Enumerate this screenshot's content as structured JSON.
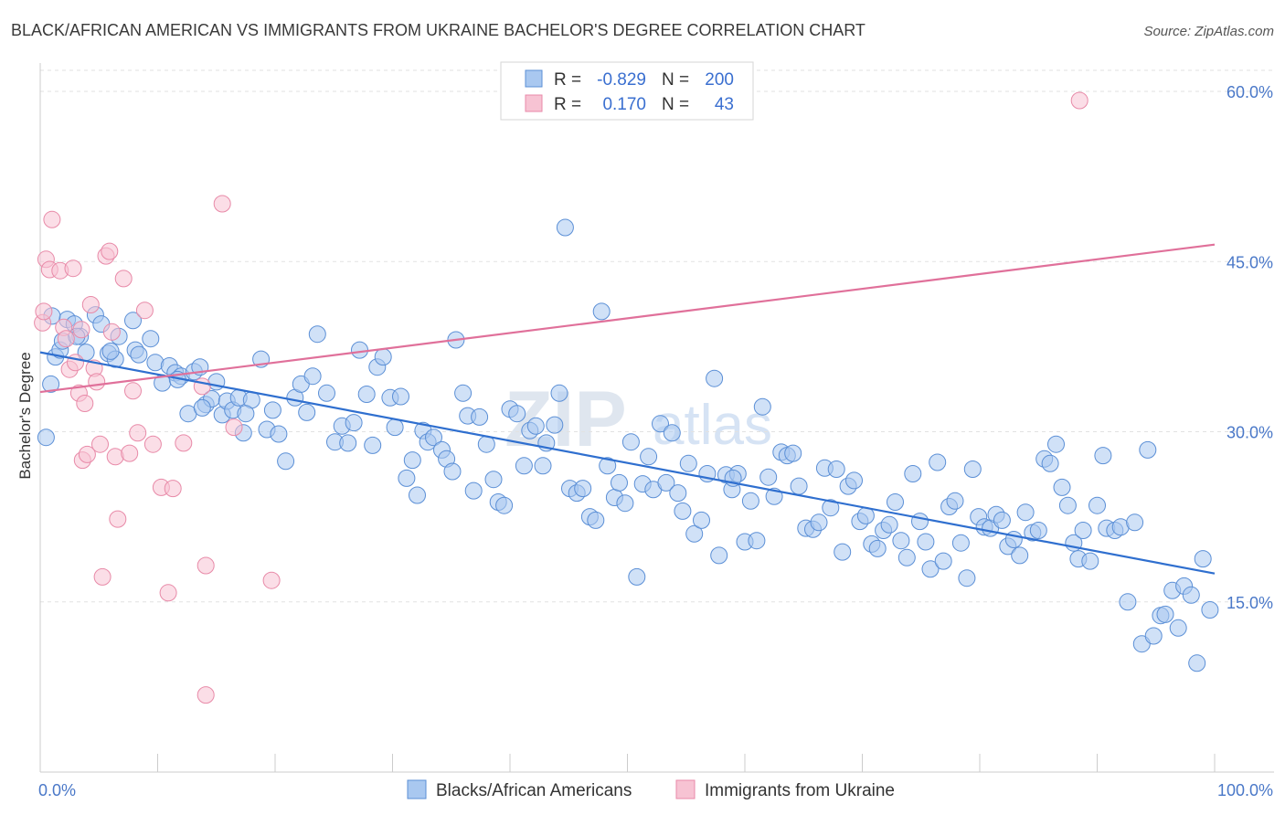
{
  "chart_data": {
    "type": "scatter",
    "title": "BLACK/AFRICAN AMERICAN VS IMMIGRANTS FROM UKRAINE BACHELOR'S DEGREE CORRELATION CHART",
    "source": "Source: ZipAtlas.com",
    "ylabel": "Bachelor's Degree",
    "xlabel": "",
    "xlim": [
      0,
      100
    ],
    "ylim": [
      0,
      62.5
    ],
    "x_ticks": [
      {
        "value": 0,
        "label": "0.0%"
      },
      {
        "value": 100,
        "label": "100.0%"
      }
    ],
    "y_ticks": [
      {
        "value": 15,
        "label": "15.0%"
      },
      {
        "value": 30,
        "label": "30.0%"
      },
      {
        "value": 45,
        "label": "45.0%"
      },
      {
        "value": 60,
        "label": "60.0%"
      }
    ],
    "watermark": {
      "part1": "ZIP",
      "part2": "atlas"
    },
    "stats": {
      "r_label": "R =",
      "n_label": "N =",
      "rows": [
        {
          "series": "Blacks/African Americans",
          "r": "-0.829",
          "n": "200"
        },
        {
          "series": "Immigrants from Ukraine",
          "r": "0.170",
          "n": "43"
        }
      ]
    },
    "series": [
      {
        "name": "Blacks/African Americans",
        "fill": "#a9c8f0",
        "stroke": "#5b8fd6",
        "line_color": "#2f6fcf",
        "trend": {
          "x0": 0,
          "y0": 37.0,
          "x1": 100,
          "y1": 17.5
        },
        "points": [
          [
            0.5,
            29.5
          ],
          [
            0.9,
            34.2
          ],
          [
            1.3,
            36.6
          ],
          [
            1.7,
            37.2
          ],
          [
            1.9,
            38.0
          ],
          [
            2.3,
            39.9
          ],
          [
            2.9,
            39.5
          ],
          [
            3.4,
            38.4
          ],
          [
            3.9,
            37.0
          ],
          [
            4.7,
            40.3
          ],
          [
            5.2,
            39.5
          ],
          [
            5.8,
            36.9
          ],
          [
            6.4,
            36.4
          ],
          [
            6.7,
            38.4
          ],
          [
            8.1,
            37.2
          ],
          [
            7.9,
            39.8
          ],
          [
            8.4,
            36.8
          ],
          [
            9.4,
            38.2
          ],
          [
            9.8,
            36.1
          ],
          [
            10.4,
            34.3
          ],
          [
            11.0,
            35.8
          ],
          [
            11.5,
            35.2
          ],
          [
            12.0,
            34.9
          ],
          [
            12.6,
            31.6
          ],
          [
            13.1,
            35.3
          ],
          [
            13.6,
            35.7
          ],
          [
            14.1,
            32.4
          ],
          [
            14.6,
            32.9
          ],
          [
            15.0,
            34.4
          ],
          [
            15.5,
            31.5
          ],
          [
            15.9,
            32.7
          ],
          [
            16.4,
            31.9
          ],
          [
            16.9,
            33.0
          ],
          [
            17.3,
            29.9
          ],
          [
            18.0,
            32.8
          ],
          [
            18.8,
            36.4
          ],
          [
            19.3,
            30.2
          ],
          [
            19.8,
            31.9
          ],
          [
            20.3,
            29.8
          ],
          [
            20.9,
            27.4
          ],
          [
            21.7,
            33.0
          ],
          [
            22.2,
            34.2
          ],
          [
            22.7,
            31.7
          ],
          [
            23.2,
            34.9
          ],
          [
            23.6,
            38.6
          ],
          [
            24.4,
            33.4
          ],
          [
            25.1,
            29.1
          ],
          [
            25.7,
            30.5
          ],
          [
            26.2,
            29.0
          ],
          [
            26.7,
            30.8
          ],
          [
            27.2,
            37.2
          ],
          [
            27.8,
            33.3
          ],
          [
            28.3,
            28.8
          ],
          [
            28.7,
            35.7
          ],
          [
            29.2,
            36.6
          ],
          [
            29.8,
            33.0
          ],
          [
            30.2,
            30.4
          ],
          [
            30.7,
            33.1
          ],
          [
            31.2,
            25.9
          ],
          [
            31.7,
            27.5
          ],
          [
            32.1,
            24.4
          ],
          [
            32.6,
            30.1
          ],
          [
            33.0,
            29.1
          ],
          [
            33.5,
            29.5
          ],
          [
            34.2,
            28.4
          ],
          [
            34.6,
            27.6
          ],
          [
            35.1,
            26.5
          ],
          [
            35.4,
            38.1
          ],
          [
            36.0,
            33.4
          ],
          [
            36.4,
            31.4
          ],
          [
            36.9,
            24.8
          ],
          [
            37.4,
            31.3
          ],
          [
            38.0,
            28.9
          ],
          [
            38.6,
            25.8
          ],
          [
            39.0,
            23.8
          ],
          [
            39.5,
            23.5
          ],
          [
            40.0,
            32.0
          ],
          [
            40.6,
            31.6
          ],
          [
            41.2,
            27.0
          ],
          [
            41.7,
            30.1
          ],
          [
            42.2,
            30.5
          ],
          [
            42.8,
            27.0
          ],
          [
            43.1,
            29.0
          ],
          [
            43.8,
            30.6
          ],
          [
            44.2,
            33.4
          ],
          [
            44.7,
            48.0
          ],
          [
            45.1,
            25.0
          ],
          [
            45.7,
            24.6
          ],
          [
            46.2,
            25.0
          ],
          [
            46.8,
            22.5
          ],
          [
            47.3,
            22.2
          ],
          [
            47.8,
            40.6
          ],
          [
            48.3,
            27.0
          ],
          [
            48.9,
            24.2
          ],
          [
            49.3,
            25.5
          ],
          [
            49.8,
            23.7
          ],
          [
            50.3,
            29.1
          ],
          [
            50.8,
            17.2
          ],
          [
            51.3,
            25.4
          ],
          [
            51.8,
            27.8
          ],
          [
            52.2,
            24.9
          ],
          [
            52.8,
            30.7
          ],
          [
            53.3,
            25.5
          ],
          [
            53.8,
            29.9
          ],
          [
            54.3,
            24.6
          ],
          [
            54.7,
            23.0
          ],
          [
            55.2,
            27.2
          ],
          [
            55.7,
            21.0
          ],
          [
            56.3,
            22.2
          ],
          [
            56.8,
            26.3
          ],
          [
            57.4,
            34.7
          ],
          [
            57.8,
            19.1
          ],
          [
            58.4,
            26.2
          ],
          [
            58.9,
            24.9
          ],
          [
            59.4,
            26.3
          ],
          [
            60.0,
            20.3
          ],
          [
            60.5,
            23.9
          ],
          [
            61.0,
            20.4
          ],
          [
            61.5,
            32.2
          ],
          [
            62.0,
            26.0
          ],
          [
            62.5,
            24.3
          ],
          [
            63.1,
            28.2
          ],
          [
            63.6,
            27.9
          ],
          [
            64.1,
            28.1
          ],
          [
            64.6,
            25.2
          ],
          [
            65.2,
            21.5
          ],
          [
            65.8,
            21.4
          ],
          [
            66.3,
            22.0
          ],
          [
            66.8,
            26.8
          ],
          [
            67.3,
            23.3
          ],
          [
            67.8,
            26.7
          ],
          [
            68.3,
            19.4
          ],
          [
            68.8,
            25.2
          ],
          [
            69.3,
            25.7
          ],
          [
            69.8,
            22.1
          ],
          [
            70.3,
            22.6
          ],
          [
            70.8,
            20.1
          ],
          [
            71.3,
            19.7
          ],
          [
            71.8,
            21.3
          ],
          [
            72.3,
            21.8
          ],
          [
            72.8,
            23.8
          ],
          [
            73.3,
            20.4
          ],
          [
            73.8,
            18.9
          ],
          [
            74.3,
            26.3
          ],
          [
            74.9,
            22.1
          ],
          [
            75.4,
            20.3
          ],
          [
            75.8,
            17.9
          ],
          [
            76.4,
            27.3
          ],
          [
            76.9,
            18.6
          ],
          [
            77.4,
            23.4
          ],
          [
            77.9,
            23.9
          ],
          [
            78.4,
            20.2
          ],
          [
            78.9,
            17.1
          ],
          [
            79.4,
            26.7
          ],
          [
            79.9,
            22.5
          ],
          [
            80.4,
            21.6
          ],
          [
            80.9,
            21.5
          ],
          [
            81.4,
            22.7
          ],
          [
            81.9,
            22.2
          ],
          [
            82.4,
            19.9
          ],
          [
            82.9,
            20.5
          ],
          [
            83.4,
            19.1
          ],
          [
            83.9,
            22.9
          ],
          [
            84.5,
            21.1
          ],
          [
            85.0,
            21.3
          ],
          [
            85.5,
            27.6
          ],
          [
            86.0,
            27.2
          ],
          [
            86.5,
            28.9
          ],
          [
            87.0,
            25.1
          ],
          [
            87.5,
            23.5
          ],
          [
            88.0,
            20.2
          ],
          [
            88.4,
            18.8
          ],
          [
            88.8,
            21.3
          ],
          [
            89.4,
            18.6
          ],
          [
            90.0,
            23.5
          ],
          [
            90.5,
            27.9
          ],
          [
            90.8,
            21.5
          ],
          [
            91.5,
            21.3
          ],
          [
            92.0,
            21.6
          ],
          [
            92.6,
            15.0
          ],
          [
            93.2,
            22.0
          ],
          [
            93.8,
            11.3
          ],
          [
            94.3,
            28.4
          ],
          [
            94.8,
            12.0
          ],
          [
            95.4,
            13.8
          ],
          [
            95.8,
            13.9
          ],
          [
            96.4,
            16.0
          ],
          [
            96.9,
            12.7
          ],
          [
            97.4,
            16.4
          ],
          [
            98.0,
            15.6
          ],
          [
            98.5,
            9.6
          ],
          [
            99.0,
            18.8
          ],
          [
            99.6,
            14.3
          ],
          [
            1.0,
            40.2
          ],
          [
            3.1,
            38.4
          ],
          [
            6.0,
            37.1
          ],
          [
            11.7,
            34.6
          ],
          [
            13.8,
            32.1
          ],
          [
            17.5,
            31.6
          ],
          [
            59.0,
            25.9
          ]
        ]
      },
      {
        "name": "Immigrants from Ukraine",
        "fill": "#f7c3d3",
        "stroke": "#e88aa8",
        "line_color": "#e0709a",
        "trend": {
          "x0": 0,
          "y0": 33.5,
          "x1": 100,
          "y1": 46.5
        },
        "points": [
          [
            0.2,
            39.6
          ],
          [
            0.5,
            45.2
          ],
          [
            0.8,
            44.3
          ],
          [
            1.0,
            48.7
          ],
          [
            1.7,
            44.2
          ],
          [
            2.0,
            39.2
          ],
          [
            2.2,
            38.2
          ],
          [
            2.5,
            35.5
          ],
          [
            2.8,
            44.4
          ],
          [
            3.0,
            36.1
          ],
          [
            3.3,
            33.4
          ],
          [
            3.6,
            27.5
          ],
          [
            3.8,
            32.5
          ],
          [
            4.0,
            28.0
          ],
          [
            4.3,
            41.2
          ],
          [
            4.6,
            35.6
          ],
          [
            4.8,
            34.4
          ],
          [
            5.1,
            28.9
          ],
          [
            5.3,
            17.2
          ],
          [
            5.6,
            45.5
          ],
          [
            5.9,
            45.9
          ],
          [
            6.1,
            38.8
          ],
          [
            6.4,
            27.8
          ],
          [
            6.6,
            22.3
          ],
          [
            7.1,
            43.5
          ],
          [
            7.6,
            28.1
          ],
          [
            7.9,
            33.6
          ],
          [
            8.3,
            29.9
          ],
          [
            8.9,
            40.7
          ],
          [
            9.6,
            28.9
          ],
          [
            10.3,
            25.1
          ],
          [
            10.9,
            15.8
          ],
          [
            11.3,
            25.0
          ],
          [
            12.2,
            29.0
          ],
          [
            13.8,
            34.0
          ],
          [
            14.1,
            18.2
          ],
          [
            14.1,
            6.8
          ],
          [
            15.5,
            50.1
          ],
          [
            16.5,
            30.4
          ],
          [
            19.7,
            16.9
          ],
          [
            88.5,
            59.2
          ],
          [
            3.5,
            39.0
          ],
          [
            0.3,
            40.6
          ]
        ]
      }
    ]
  }
}
